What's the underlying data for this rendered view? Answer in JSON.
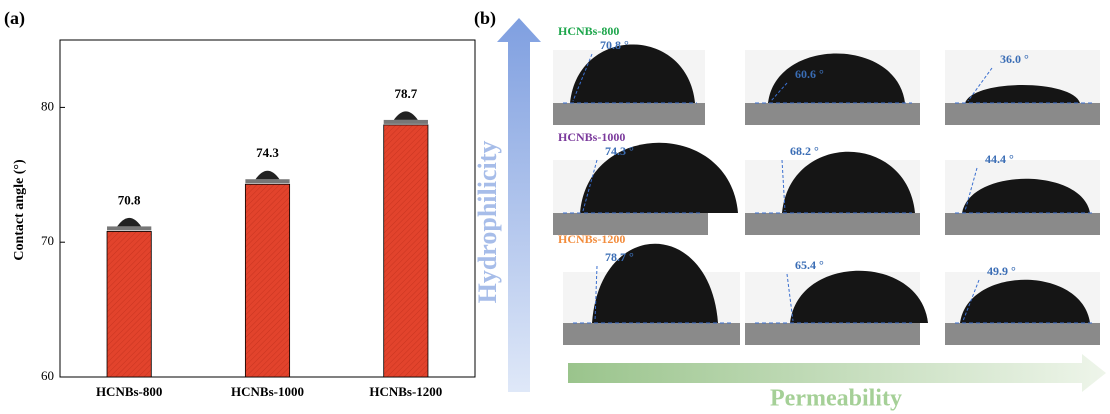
{
  "chart_data": {
    "type": "bar",
    "panel_label": "(a)",
    "ylabel": "Contact angle (°)",
    "categories": [
      "HCNBs-800",
      "HCNBs-1000",
      "HCNBs-1200"
    ],
    "values": [
      70.8,
      74.3,
      78.7
    ],
    "color": "#e2432c",
    "ylim": [
      60,
      85
    ],
    "yticks": [
      60,
      70,
      80
    ]
  },
  "panel_b": {
    "panel_label": "(b)",
    "rows": [
      {
        "name": "HCNBs-800",
        "color": "#1ea64c",
        "angles": [
          "70.8 °",
          "60.6 °",
          "36.0 °"
        ]
      },
      {
        "name": "HCNBs-1000",
        "color": "#7b3a9c",
        "angles": [
          "74.3 °",
          "68.2 °",
          "44.4 °"
        ]
      },
      {
        "name": "HCNBs-1200",
        "color": "#f28c3c",
        "angles": [
          "78.7 °",
          "65.4 °",
          "49.9 °"
        ]
      }
    ],
    "vertical_arrow_label": "Hydrophilicity",
    "horizontal_arrow_label": "Permeability"
  }
}
